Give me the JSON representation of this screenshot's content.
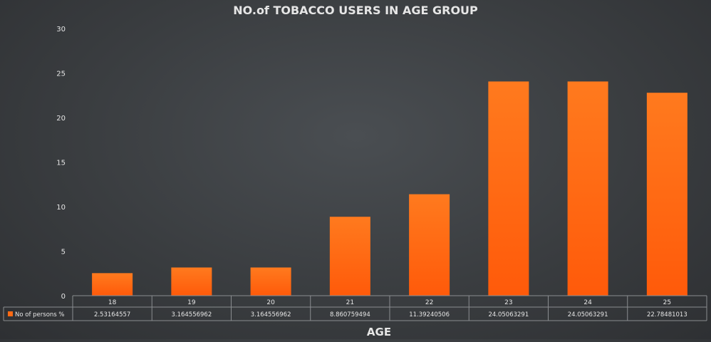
{
  "chart_data": {
    "type": "bar",
    "title": "NO.of TOBACCO USERS IN AGE GROUP",
    "xlabel": "AGE",
    "ylabel": "",
    "ylim": [
      0,
      30
    ],
    "yticks": [
      0,
      5,
      10,
      15,
      20,
      25,
      30
    ],
    "grid": false,
    "legend_position": "data-table-left",
    "categories": [
      "18",
      "19",
      "20",
      "21",
      "22",
      "23",
      "24",
      "25"
    ],
    "series": [
      {
        "name": "No of persons %",
        "color": "#ff6a14",
        "values": [
          2.53164557,
          3.164556962,
          3.164556962,
          8.860759494,
          11.39240506,
          24.05063291,
          24.05063291,
          22.78481013
        ],
        "value_labels": [
          "2.53164557",
          "3.164556962",
          "3.164556962",
          "8.860759494",
          "11.39240506",
          "24.05063291",
          "24.05063291",
          "22.78481013"
        ]
      }
    ],
    "colors": {
      "bar_top": "#ff7a1e",
      "bar_bottom": "#ff5a0a",
      "text": "#e6e6e6",
      "table_line": "#8a8d90"
    }
  }
}
